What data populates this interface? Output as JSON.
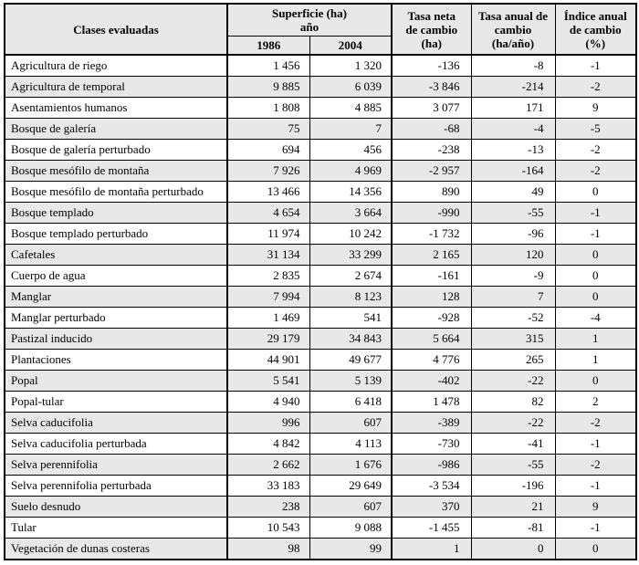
{
  "columns": {
    "clases": "Clases evaluadas",
    "superficie_title": "Superficie (ha)",
    "superficie_subtitle": "año",
    "years": [
      "1986",
      "2004"
    ],
    "tasa_neta_lines": [
      "Tasa neta",
      "de cambio",
      "(ha)"
    ],
    "tasa_anual_lines": [
      "Tasa anual de",
      "cambio",
      "(ha/año)"
    ],
    "indice_lines": [
      "Índice anual",
      "de cambio",
      "(%)"
    ]
  },
  "colors": {
    "header_bg": "#e8e8e8",
    "row_alt_bg": "#e8e8e8",
    "border": "#000000",
    "text": "#000000",
    "background": "#ffffff"
  },
  "chart_data": {
    "type": "table",
    "title": "",
    "column_headers": [
      "Clases evaluadas",
      "Superficie (ha) año 1986",
      "Superficie (ha) año 2004",
      "Tasa neta de cambio (ha)",
      "Tasa anual de cambio (ha/año)",
      "Índice anual de cambio (%)"
    ]
  },
  "rows": [
    {
      "clase": "Agricultura de riego",
      "s1986": "1 456",
      "s2004": "1 320",
      "tasa_neta": "-136",
      "tasa_anual": "-8",
      "indice": "-1"
    },
    {
      "clase": "Agricultura de temporal",
      "s1986": "9 885",
      "s2004": "6 039",
      "tasa_neta": "-3 846",
      "tasa_anual": "-214",
      "indice": "-2"
    },
    {
      "clase": "Asentamientos humanos",
      "s1986": "1 808",
      "s2004": "4 885",
      "tasa_neta": "3 077",
      "tasa_anual": "171",
      "indice": "9"
    },
    {
      "clase": "Bosque de galería",
      "s1986": "75",
      "s2004": "7",
      "tasa_neta": "-68",
      "tasa_anual": "-4",
      "indice": "-5"
    },
    {
      "clase": "Bosque de galería perturbado",
      "s1986": "694",
      "s2004": "456",
      "tasa_neta": "-238",
      "tasa_anual": "-13",
      "indice": "-2"
    },
    {
      "clase": "Bosque mesófilo de montaña",
      "s1986": "7 926",
      "s2004": "4 969",
      "tasa_neta": "-2 957",
      "tasa_anual": "-164",
      "indice": "-2"
    },
    {
      "clase": "Bosque mesófilo de montaña perturbado",
      "s1986": "13 466",
      "s2004": "14 356",
      "tasa_neta": "890",
      "tasa_anual": "49",
      "indice": "0"
    },
    {
      "clase": "Bosque templado",
      "s1986": "4 654",
      "s2004": "3 664",
      "tasa_neta": "-990",
      "tasa_anual": "-55",
      "indice": "-1"
    },
    {
      "clase": "Bosque templado perturbado",
      "s1986": "11 974",
      "s2004": "10 242",
      "tasa_neta": "-1 732",
      "tasa_anual": "-96",
      "indice": "-1"
    },
    {
      "clase": "Cafetales",
      "s1986": "31 134",
      "s2004": "33 299",
      "tasa_neta": "2 165",
      "tasa_anual": "120",
      "indice": "0"
    },
    {
      "clase": "Cuerpo de agua",
      "s1986": "2 835",
      "s2004": "2 674",
      "tasa_neta": "-161",
      "tasa_anual": "-9",
      "indice": "0"
    },
    {
      "clase": "Manglar",
      "s1986": "7 994",
      "s2004": "8 123",
      "tasa_neta": "128",
      "tasa_anual": "7",
      "indice": "0"
    },
    {
      "clase": "Manglar perturbado",
      "s1986": "1 469",
      "s2004": "541",
      "tasa_neta": "-928",
      "tasa_anual": "-52",
      "indice": "-4"
    },
    {
      "clase": "Pastizal inducido",
      "s1986": "29 179",
      "s2004": "34 843",
      "tasa_neta": "5 664",
      "tasa_anual": "315",
      "indice": "1"
    },
    {
      "clase": "Plantaciones",
      "s1986": "44 901",
      "s2004": "49 677",
      "tasa_neta": "4 776",
      "tasa_anual": "265",
      "indice": "1"
    },
    {
      "clase": "Popal",
      "s1986": "5 541",
      "s2004": "5 139",
      "tasa_neta": "-402",
      "tasa_anual": "-22",
      "indice": "0"
    },
    {
      "clase": "Popal-tular",
      "s1986": "4 940",
      "s2004": "6 418",
      "tasa_neta": "1 478",
      "tasa_anual": "82",
      "indice": "2"
    },
    {
      "clase": "Selva caducifolia",
      "s1986": "996",
      "s2004": "607",
      "tasa_neta": "-389",
      "tasa_anual": "-22",
      "indice": "-2"
    },
    {
      "clase": "Selva caducifolia perturbada",
      "s1986": "4 842",
      "s2004": "4 113",
      "tasa_neta": "-730",
      "tasa_anual": "-41",
      "indice": "-1"
    },
    {
      "clase": "Selva perennifolia",
      "s1986": "2 662",
      "s2004": "1 676",
      "tasa_neta": "-986",
      "tasa_anual": "-55",
      "indice": "-2"
    },
    {
      "clase": "Selva perennifolia perturbada",
      "s1986": "33 183",
      "s2004": "29 649",
      "tasa_neta": "-3 534",
      "tasa_anual": "-196",
      "indice": "-1"
    },
    {
      "clase": "Suelo desnudo",
      "s1986": "238",
      "s2004": "607",
      "tasa_neta": "370",
      "tasa_anual": "21",
      "indice": "9"
    },
    {
      "clase": "Tular",
      "s1986": "10 543",
      "s2004": "9 088",
      "tasa_neta": "-1 455",
      "tasa_anual": "-81",
      "indice": "-1"
    },
    {
      "clase": "Vegetación de dunas costeras",
      "s1986": "98",
      "s2004": "99",
      "tasa_neta": "1",
      "tasa_anual": "0",
      "indice": "0"
    }
  ]
}
